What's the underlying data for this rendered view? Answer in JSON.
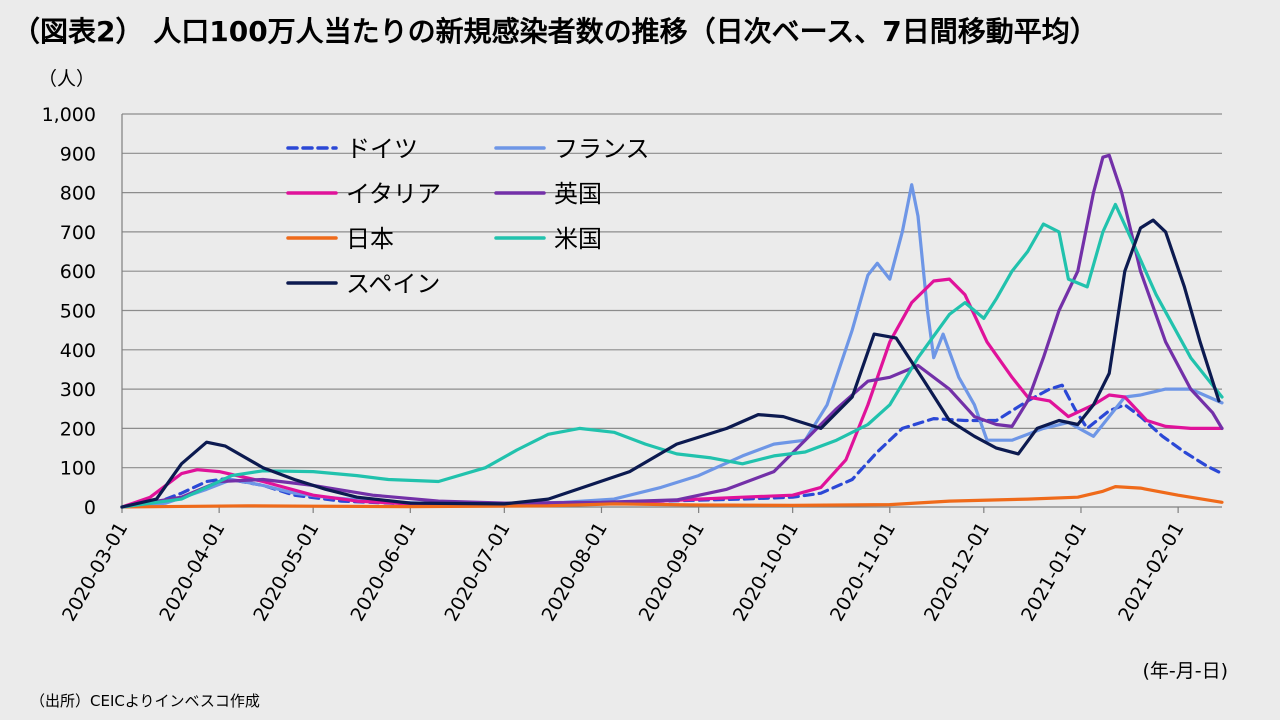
{
  "title": "（図表2） 人口100万人当たりの新規感染者数の推移（日次ベース、7日間移動平均）",
  "unit_label": "（人）",
  "x_unit_label": "(年-月-日)",
  "source": "（出所）CEICよりインベスコ作成",
  "chart_data": {
    "type": "line",
    "title": "（図表2） 人口100万人当たりの新規感染者数の推移（日次ベース、7日間移動平均）",
    "xlabel": "(年-月-日)",
    "ylabel": "（人）",
    "ylim": [
      0,
      1000
    ],
    "xlim": [
      "2020-03-01",
      "2021-02-15"
    ],
    "yticks": [
      "0",
      "100",
      "200",
      "300",
      "400",
      "500",
      "600",
      "700",
      "800",
      "900",
      "1,000"
    ],
    "xticks": [
      "2020-03-01",
      "2020-04-01",
      "2020-05-01",
      "2020-06-01",
      "2020-07-01",
      "2020-08-01",
      "2020-09-01",
      "2020-10-01",
      "2020-11-01",
      "2020-12-01",
      "2021-01-01",
      "2021-02-01"
    ],
    "grid": "horizontal",
    "legend": "top-left",
    "series": [
      {
        "name": "ドイツ",
        "color": "#2b48d6",
        "dash": true,
        "points": [
          [
            "2020-03-01",
            0
          ],
          [
            "2020-03-10",
            5
          ],
          [
            "2020-03-20",
            35
          ],
          [
            "2020-03-28",
            65
          ],
          [
            "2020-04-03",
            72
          ],
          [
            "2020-04-15",
            55
          ],
          [
            "2020-04-25",
            30
          ],
          [
            "2020-05-10",
            15
          ],
          [
            "2020-06-01",
            8
          ],
          [
            "2020-07-01",
            5
          ],
          [
            "2020-08-01",
            10
          ],
          [
            "2020-08-20",
            15
          ],
          [
            "2020-09-15",
            20
          ],
          [
            "2020-10-01",
            25
          ],
          [
            "2020-10-10",
            35
          ],
          [
            "2020-10-20",
            70
          ],
          [
            "2020-10-28",
            140
          ],
          [
            "2020-11-05",
            200
          ],
          [
            "2020-11-15",
            225
          ],
          [
            "2020-11-25",
            220
          ],
          [
            "2020-12-05",
            220
          ],
          [
            "2020-12-15",
            270
          ],
          [
            "2020-12-22",
            300
          ],
          [
            "2020-12-26",
            310
          ],
          [
            "2020-12-30",
            250
          ],
          [
            "2021-01-03",
            200
          ],
          [
            "2021-01-10",
            245
          ],
          [
            "2021-01-15",
            260
          ],
          [
            "2021-01-20",
            230
          ],
          [
            "2021-01-27",
            180
          ],
          [
            "2021-02-03",
            140
          ],
          [
            "2021-02-10",
            105
          ],
          [
            "2021-02-15",
            85
          ]
        ]
      },
      {
        "name": "フランス",
        "color": "#6e96e6",
        "points": [
          [
            "2020-03-01",
            0
          ],
          [
            "2020-03-15",
            10
          ],
          [
            "2020-03-28",
            45
          ],
          [
            "2020-04-05",
            70
          ],
          [
            "2020-04-15",
            55
          ],
          [
            "2020-04-25",
            35
          ],
          [
            "2020-05-05",
            25
          ],
          [
            "2020-05-20",
            15
          ],
          [
            "2020-06-10",
            8
          ],
          [
            "2020-07-01",
            8
          ],
          [
            "2020-07-20",
            12
          ],
          [
            "2020-08-05",
            20
          ],
          [
            "2020-08-20",
            50
          ],
          [
            "2020-09-01",
            80
          ],
          [
            "2020-09-15",
            130
          ],
          [
            "2020-09-25",
            160
          ],
          [
            "2020-10-05",
            170
          ],
          [
            "2020-10-12",
            260
          ],
          [
            "2020-10-20",
            450
          ],
          [
            "2020-10-25",
            590
          ],
          [
            "2020-10-28",
            620
          ],
          [
            "2020-11-01",
            580
          ],
          [
            "2020-11-05",
            700
          ],
          [
            "2020-11-08",
            820
          ],
          [
            "2020-11-10",
            740
          ],
          [
            "2020-11-13",
            500
          ],
          [
            "2020-11-15",
            380
          ],
          [
            "2020-11-18",
            440
          ],
          [
            "2020-11-23",
            330
          ],
          [
            "2020-11-28",
            260
          ],
          [
            "2020-12-02",
            170
          ],
          [
            "2020-12-10",
            170
          ],
          [
            "2020-12-20",
            200
          ],
          [
            "2020-12-28",
            215
          ],
          [
            "2021-01-05",
            180
          ],
          [
            "2021-01-15",
            280
          ],
          [
            "2021-01-20",
            285
          ],
          [
            "2021-01-28",
            300
          ],
          [
            "2021-02-05",
            300
          ],
          [
            "2021-02-15",
            265
          ]
        ]
      },
      {
        "name": "イタリア",
        "color": "#e0129a",
        "points": [
          [
            "2020-03-01",
            0
          ],
          [
            "2020-03-10",
            25
          ],
          [
            "2020-03-20",
            85
          ],
          [
            "2020-03-25",
            95
          ],
          [
            "2020-04-01",
            90
          ],
          [
            "2020-04-15",
            65
          ],
          [
            "2020-05-01",
            30
          ],
          [
            "2020-05-15",
            15
          ],
          [
            "2020-06-01",
            8
          ],
          [
            "2020-07-01",
            5
          ],
          [
            "2020-08-01",
            8
          ],
          [
            "2020-09-01",
            20
          ],
          [
            "2020-09-15",
            25
          ],
          [
            "2020-10-01",
            30
          ],
          [
            "2020-10-10",
            50
          ],
          [
            "2020-10-18",
            120
          ],
          [
            "2020-10-25",
            260
          ],
          [
            "2020-11-01",
            420
          ],
          [
            "2020-11-08",
            520
          ],
          [
            "2020-11-15",
            575
          ],
          [
            "2020-11-20",
            580
          ],
          [
            "2020-11-25",
            540
          ],
          [
            "2020-12-02",
            420
          ],
          [
            "2020-12-10",
            330
          ],
          [
            "2020-12-15",
            280
          ],
          [
            "2020-12-22",
            270
          ],
          [
            "2020-12-28",
            230
          ],
          [
            "2021-01-05",
            260
          ],
          [
            "2021-01-10",
            285
          ],
          [
            "2021-01-15",
            280
          ],
          [
            "2021-01-22",
            220
          ],
          [
            "2021-01-28",
            205
          ],
          [
            "2021-02-05",
            200
          ],
          [
            "2021-02-15",
            200
          ]
        ]
      },
      {
        "name": "英国",
        "color": "#7330a8",
        "points": [
          [
            "2020-03-01",
            0
          ],
          [
            "2020-03-20",
            25
          ],
          [
            "2020-04-01",
            65
          ],
          [
            "2020-04-15",
            70
          ],
          [
            "2020-05-01",
            55
          ],
          [
            "2020-05-20",
            30
          ],
          [
            "2020-06-10",
            15
          ],
          [
            "2020-07-01",
            10
          ],
          [
            "2020-08-01",
            12
          ],
          [
            "2020-08-25",
            18
          ],
          [
            "2020-09-10",
            45
          ],
          [
            "2020-09-25",
            90
          ],
          [
            "2020-10-05",
            170
          ],
          [
            "2020-10-15",
            250
          ],
          [
            "2020-10-25",
            320
          ],
          [
            "2020-11-01",
            330
          ],
          [
            "2020-11-10",
            360
          ],
          [
            "2020-11-20",
            300
          ],
          [
            "2020-11-28",
            230
          ],
          [
            "2020-12-05",
            210
          ],
          [
            "2020-12-10",
            205
          ],
          [
            "2020-12-15",
            270
          ],
          [
            "2020-12-20",
            380
          ],
          [
            "2020-12-25",
            500
          ],
          [
            "2020-12-31",
            600
          ],
          [
            "2021-01-05",
            800
          ],
          [
            "2021-01-08",
            890
          ],
          [
            "2021-01-10",
            895
          ],
          [
            "2021-01-14",
            800
          ],
          [
            "2021-01-20",
            600
          ],
          [
            "2021-01-28",
            420
          ],
          [
            "2021-02-05",
            300
          ],
          [
            "2021-02-12",
            240
          ],
          [
            "2021-02-15",
            200
          ]
        ]
      },
      {
        "name": "日本",
        "color": "#ef6a1a",
        "points": [
          [
            "2020-03-01",
            0
          ],
          [
            "2020-04-10",
            3
          ],
          [
            "2020-05-01",
            2
          ],
          [
            "2020-06-01",
            1
          ],
          [
            "2020-07-15",
            3
          ],
          [
            "2020-08-05",
            8
          ],
          [
            "2020-09-01",
            5
          ],
          [
            "2020-10-01",
            4
          ],
          [
            "2020-11-01",
            6
          ],
          [
            "2020-11-20",
            15
          ],
          [
            "2020-12-15",
            20
          ],
          [
            "2020-12-31",
            25
          ],
          [
            "2021-01-08",
            40
          ],
          [
            "2021-01-12",
            52
          ],
          [
            "2021-01-20",
            48
          ],
          [
            "2021-02-01",
            30
          ],
          [
            "2021-02-15",
            12
          ]
        ]
      },
      {
        "name": "米国",
        "color": "#21c2ad",
        "points": [
          [
            "2020-03-01",
            0
          ],
          [
            "2020-03-20",
            20
          ],
          [
            "2020-04-05",
            80
          ],
          [
            "2020-04-15",
            92
          ],
          [
            "2020-05-01",
            90
          ],
          [
            "2020-05-15",
            80
          ],
          [
            "2020-05-25",
            70
          ],
          [
            "2020-06-10",
            65
          ],
          [
            "2020-06-25",
            100
          ],
          [
            "2020-07-05",
            145
          ],
          [
            "2020-07-15",
            185
          ],
          [
            "2020-07-25",
            200
          ],
          [
            "2020-08-05",
            190
          ],
          [
            "2020-08-15",
            160
          ],
          [
            "2020-08-25",
            135
          ],
          [
            "2020-09-05",
            125
          ],
          [
            "2020-09-15",
            110
          ],
          [
            "2020-09-25",
            130
          ],
          [
            "2020-10-05",
            140
          ],
          [
            "2020-10-15",
            170
          ],
          [
            "2020-10-25",
            210
          ],
          [
            "2020-11-01",
            260
          ],
          [
            "2020-11-10",
            380
          ],
          [
            "2020-11-20",
            490
          ],
          [
            "2020-11-25",
            520
          ],
          [
            "2020-12-01",
            480
          ],
          [
            "2020-12-05",
            530
          ],
          [
            "2020-12-10",
            600
          ],
          [
            "2020-12-15",
            650
          ],
          [
            "2020-12-20",
            720
          ],
          [
            "2020-12-25",
            700
          ],
          [
            "2020-12-28",
            580
          ],
          [
            "2021-01-03",
            560
          ],
          [
            "2021-01-08",
            700
          ],
          [
            "2021-01-12",
            770
          ],
          [
            "2021-01-16",
            700
          ],
          [
            "2021-01-25",
            540
          ],
          [
            "2021-02-05",
            380
          ],
          [
            "2021-02-15",
            280
          ]
        ]
      },
      {
        "name": "スペイン",
        "color": "#0c1a50",
        "points": [
          [
            "2020-03-01",
            0
          ],
          [
            "2020-03-12",
            20
          ],
          [
            "2020-03-20",
            110
          ],
          [
            "2020-03-28",
            165
          ],
          [
            "2020-04-03",
            155
          ],
          [
            "2020-04-15",
            100
          ],
          [
            "2020-04-25",
            70
          ],
          [
            "2020-05-05",
            45
          ],
          [
            "2020-05-15",
            25
          ],
          [
            "2020-06-01",
            10
          ],
          [
            "2020-07-01",
            8
          ],
          [
            "2020-07-15",
            20
          ],
          [
            "2020-07-28",
            55
          ],
          [
            "2020-08-10",
            90
          ],
          [
            "2020-08-25",
            160
          ],
          [
            "2020-09-10",
            200
          ],
          [
            "2020-09-20",
            235
          ],
          [
            "2020-09-28",
            230
          ],
          [
            "2020-10-10",
            200
          ],
          [
            "2020-10-20",
            280
          ],
          [
            "2020-10-27",
            440
          ],
          [
            "2020-11-03",
            430
          ],
          [
            "2020-11-12",
            320
          ],
          [
            "2020-11-20",
            220
          ],
          [
            "2020-11-28",
            180
          ],
          [
            "2020-12-05",
            150
          ],
          [
            "2020-12-12",
            135
          ],
          [
            "2020-12-18",
            200
          ],
          [
            "2020-12-25",
            220
          ],
          [
            "2020-12-31",
            210
          ],
          [
            "2021-01-05",
            260
          ],
          [
            "2021-01-10",
            340
          ],
          [
            "2021-01-15",
            600
          ],
          [
            "2021-01-20",
            710
          ],
          [
            "2021-01-24",
            730
          ],
          [
            "2021-01-28",
            700
          ],
          [
            "2021-02-03",
            560
          ],
          [
            "2021-02-08",
            420
          ],
          [
            "2021-02-14",
            270
          ]
        ]
      }
    ]
  }
}
